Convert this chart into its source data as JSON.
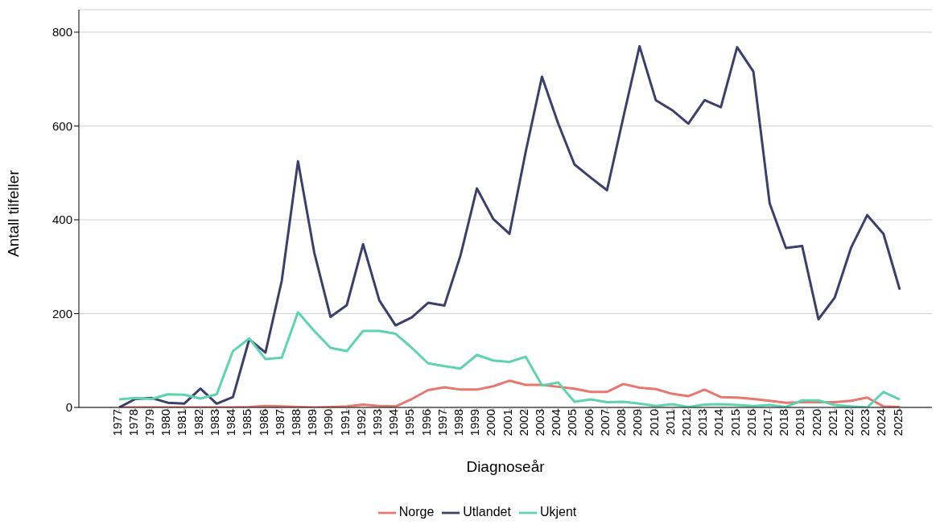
{
  "chart_data": {
    "type": "line",
    "xlabel": "Diagnoseår",
    "ylabel": "Antall tilfeller",
    "categories": [
      "1977",
      "1978",
      "1979",
      "1980",
      "1981",
      "1982",
      "1983",
      "1984",
      "1985",
      "1986",
      "1987",
      "1988",
      "1989",
      "1990",
      "1991",
      "1992",
      "1993",
      "1994",
      "1995",
      "1996",
      "1997",
      "1998",
      "1999",
      "2000",
      "2001",
      "2002",
      "2003",
      "2004",
      "2005",
      "2006",
      "2007",
      "2008",
      "2009",
      "2010",
      "2011",
      "2012",
      "2013",
      "2014",
      "2015",
      "2016",
      "2017",
      "2018",
      "2019",
      "2020",
      "2021",
      "2022",
      "2023",
      "2024",
      "2025"
    ],
    "series": [
      {
        "name": "Norge",
        "color": "#e8776e",
        "values": [
          0,
          0,
          0,
          0,
          0,
          0,
          0,
          0,
          1,
          3,
          2,
          1,
          0,
          1,
          2,
          6,
          3,
          2,
          18,
          37,
          43,
          38,
          38,
          45,
          57,
          48,
          48,
          44,
          40,
          33,
          33,
          50,
          42,
          39,
          29,
          24,
          38,
          22,
          21,
          18,
          14,
          10,
          11,
          11,
          11,
          14,
          21,
          2,
          1
        ]
      },
      {
        "name": "Utlandet",
        "color": "#3b3f6b",
        "values": [
          0,
          18,
          20,
          10,
          8,
          40,
          8,
          22,
          145,
          117,
          270,
          525,
          330,
          193,
          218,
          348,
          228,
          175,
          192,
          223,
          217,
          325,
          467,
          402,
          370,
          545,
          705,
          605,
          518,
          490,
          463,
          618,
          770,
          655,
          634,
          605,
          655,
          640,
          768,
          716,
          435,
          340,
          344,
          188,
          234,
          340,
          410,
          370,
          251
        ]
      },
      {
        "name": "Ukjent",
        "color": "#5dd3b0",
        "values": [
          17,
          20,
          18,
          28,
          27,
          19,
          28,
          120,
          147,
          103,
          106,
          203,
          163,
          127,
          120,
          163,
          163,
          157,
          127,
          94,
          88,
          83,
          112,
          100,
          97,
          108,
          47,
          53,
          12,
          17,
          11,
          12,
          8,
          3,
          7,
          1,
          6,
          7,
          5,
          3,
          5,
          1,
          15,
          15,
          5,
          2,
          0,
          33,
          17
        ]
      }
    ],
    "ylim": [
      0,
      848
    ],
    "yticks": [
      0,
      200,
      400,
      600,
      800
    ],
    "grid": "y",
    "legend": "bottom",
    "marker": "none",
    "line_style": "solid"
  }
}
